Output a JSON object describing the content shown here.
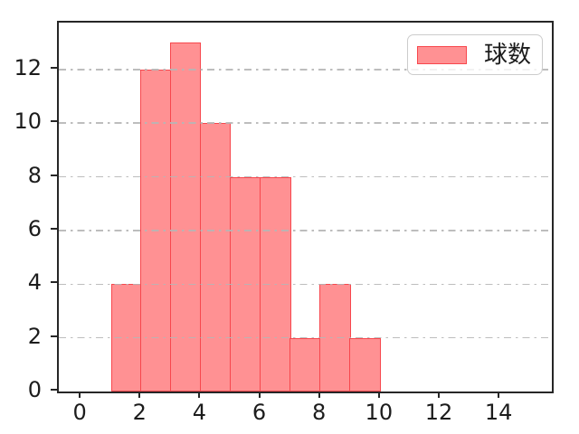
{
  "figure": {
    "background": "#ffffff"
  },
  "chart_data": {
    "type": "bar",
    "subtype": "histogram",
    "title": "",
    "xlabel": "",
    "ylabel": "",
    "legend": {
      "label": "球数",
      "position": "upper-right"
    },
    "bin_edges": [
      1,
      2,
      3,
      4,
      5,
      6,
      7,
      8,
      9,
      10
    ],
    "values": [
      4,
      12,
      13,
      10,
      8,
      8,
      2,
      4,
      2
    ],
    "x_ticks": [
      0,
      2,
      4,
      6,
      8,
      10,
      12,
      14
    ],
    "y_ticks": [
      0,
      2,
      4,
      6,
      8,
      10,
      12
    ],
    "xlim": [
      -0.76,
      15.72
    ],
    "ylim": [
      0,
      13.75
    ],
    "grid": {
      "axis": "y",
      "linestyle": "dash-dot",
      "color": "#b6b6b6"
    },
    "colors": {
      "bar_fill": "#ff9193",
      "bar_edge": "#f7474d",
      "spine": "#262626",
      "tick_label": "#1c1c1c",
      "legend_border": "#cccccc"
    }
  }
}
